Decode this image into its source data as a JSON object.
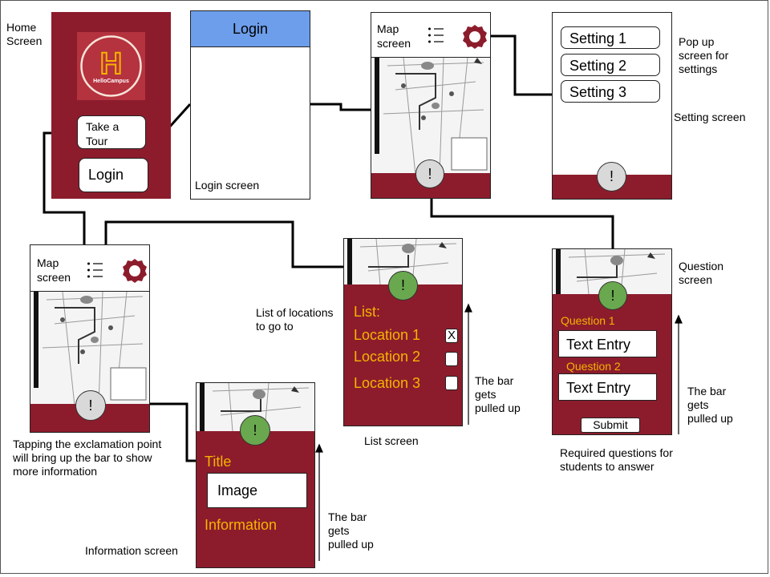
{
  "notes": {
    "home_screen": "Home\nScreen",
    "login_screen": "Login screen",
    "popup_settings": "Pop up\nscreen for\nsettings",
    "setting_screen": "Setting screen",
    "question_screen": "Question\nscreen",
    "list_of_locations": "List of locations\nto go to",
    "list_screen": "List screen",
    "tapping": "Tapping the exclamation point\nwill bring up the bar to show\nmore information",
    "information_screen": "Information screen",
    "bar_pulled_list": "The bar\ngets\npulled up",
    "bar_pulled_info": "The bar\ngets\npulled up",
    "bar_pulled_question": "The bar\ngets\npulled up",
    "required_questions": "Required questions for\nstudents to answer"
  },
  "home": {
    "logo_letter": "H",
    "logo_text": "HelloCampus",
    "take_tour": "Take a\nTour",
    "login": "Login"
  },
  "login": {
    "title": "Login"
  },
  "map_screen": {
    "title": "Map\nscreen",
    "info_glyph": "!"
  },
  "settings": {
    "items": [
      "Setting 1",
      "Setting 2",
      "Setting 3"
    ],
    "info_glyph": "!"
  },
  "list": {
    "heading": "List:",
    "locations": [
      {
        "label": "Location 1",
        "mark": "X"
      },
      {
        "label": "Location 2",
        "mark": ""
      },
      {
        "label": "Location 3",
        "mark": ""
      }
    ],
    "info_glyph": "!"
  },
  "info": {
    "title": "Title",
    "image": "Image",
    "information": "Information",
    "info_glyph": "!"
  },
  "questions": {
    "q1": "Question 1",
    "q2": "Question 2",
    "entry1": "Text Entry",
    "entry2": "Text Entry",
    "submit": "Submit",
    "info_glyph": "!"
  },
  "colors": {
    "maroon": "#8c1c2c",
    "login_blue": "#6d9eeb",
    "gold": "#f5b400",
    "green": "#6aa84f",
    "grey": "#d9d9d9"
  },
  "icons": [
    "menu-icon",
    "gear-icon",
    "check-x-icon",
    "up-arrow-icon",
    "campus-map"
  ]
}
